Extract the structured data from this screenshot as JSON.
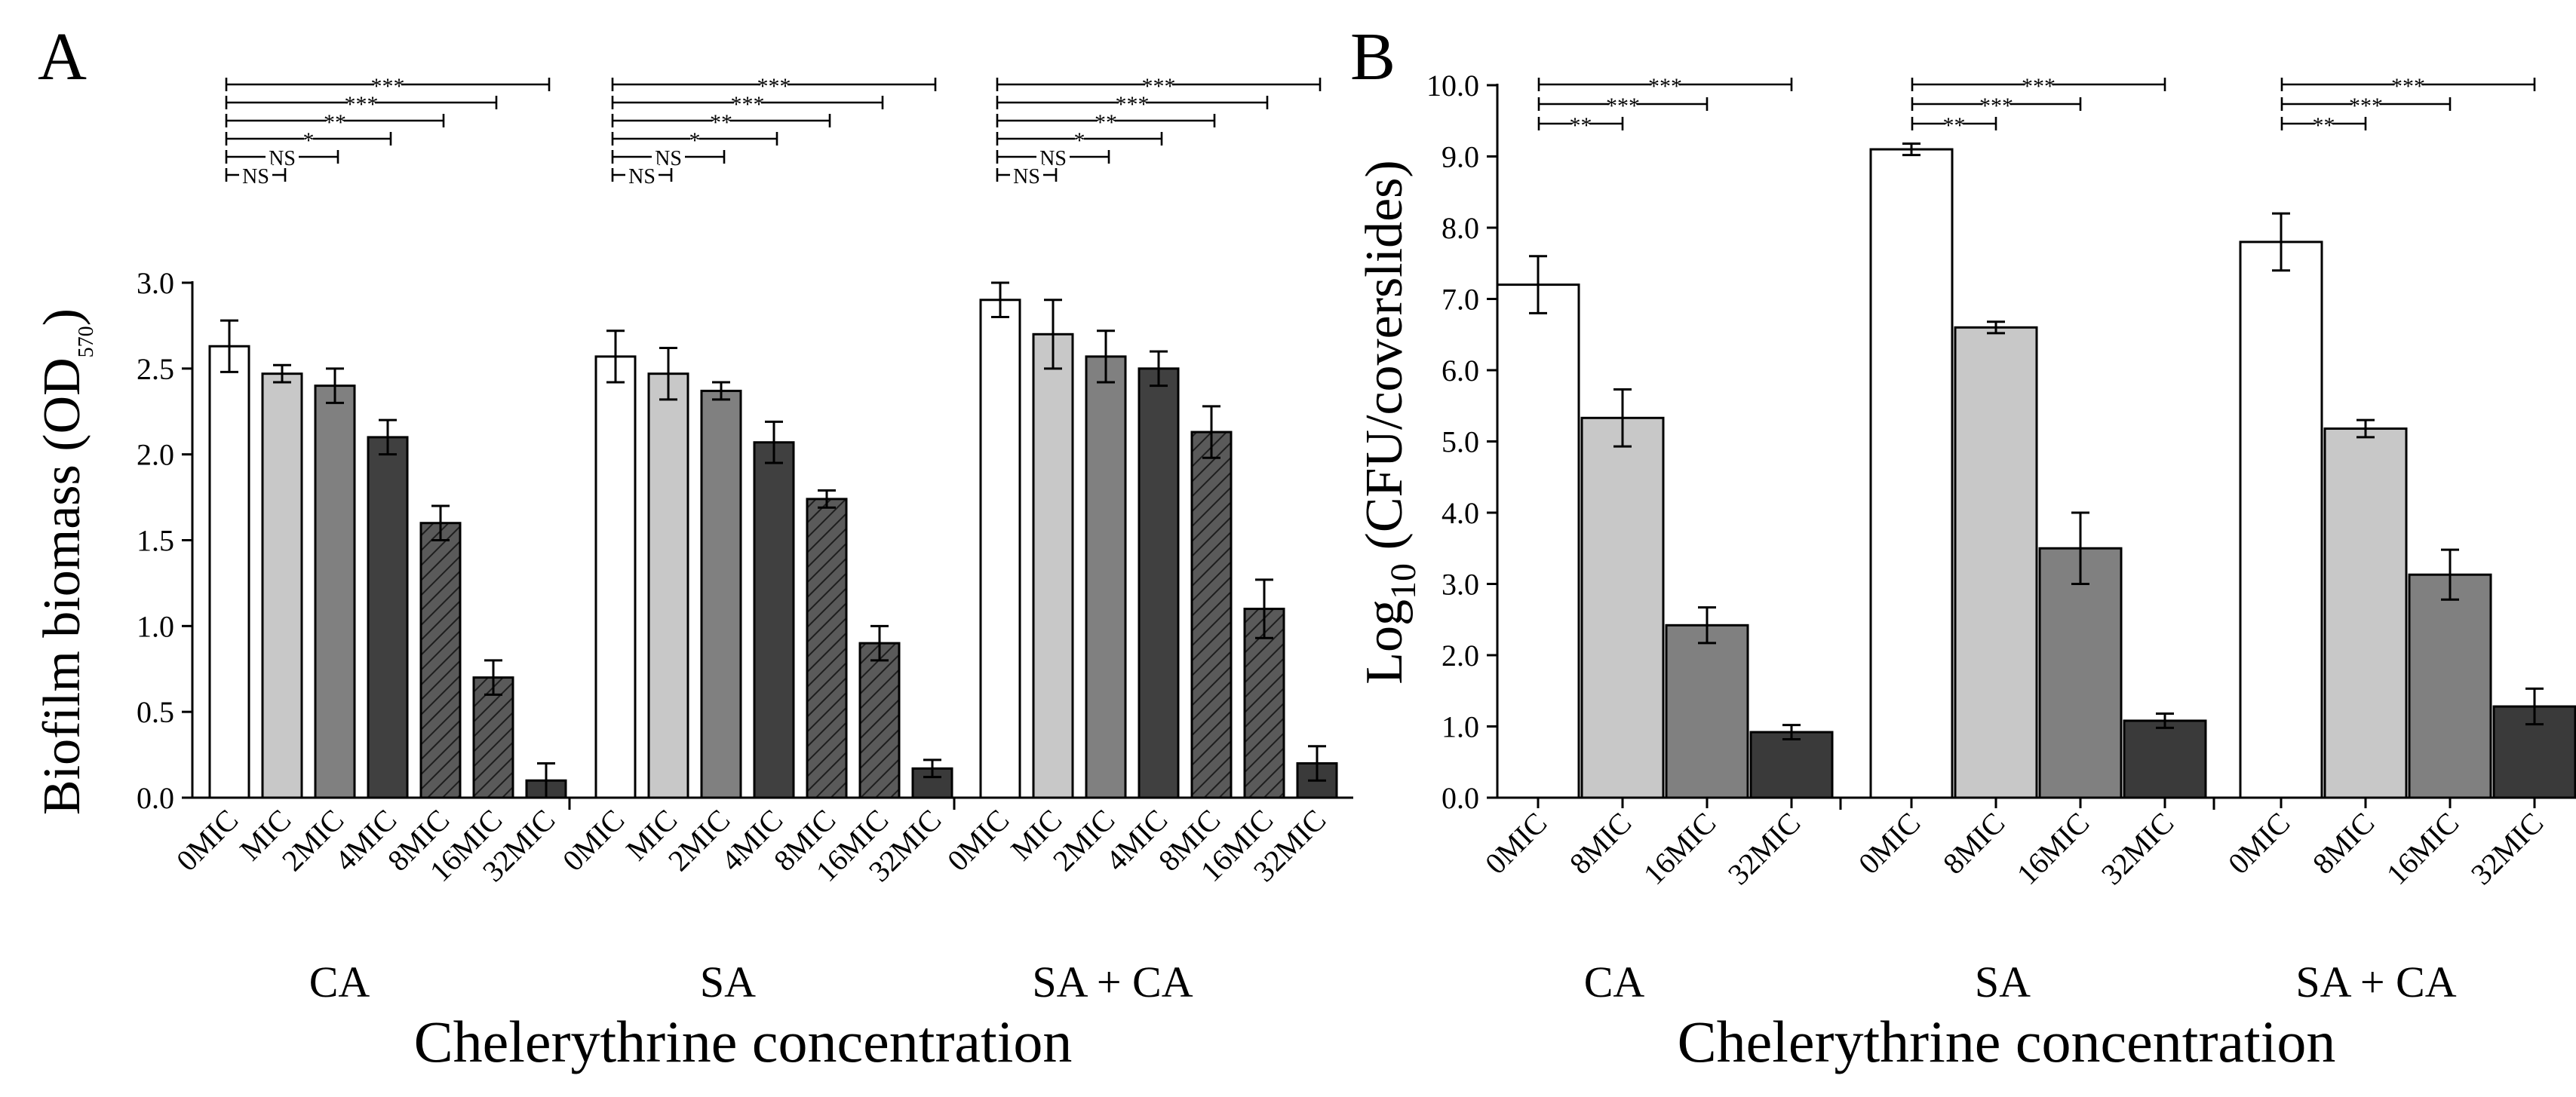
{
  "colors": {
    "white": "#ffffff",
    "light_gray": "#c8c8c8",
    "mid_gray": "#808080",
    "dark_gray": "#404040",
    "hatch_gray": "#5a5a5a",
    "darker_gray": "#3a3a3a"
  },
  "chart_data": [
    {
      "type": "bar",
      "panel_label": "A",
      "ylabel": "Biofilm biomass (OD570)",
      "ylabel_main": "Biofilm biomass (OD",
      "ylabel_sub": "570",
      "ylabel_end": ")",
      "xlabel": "Chelerythrine concentration",
      "ylim": [
        0,
        3.0
      ],
      "yticks": [
        "0.0",
        "0.5",
        "1.0",
        "1.5",
        "2.0",
        "2.5",
        "3.0"
      ],
      "ytick_values": [
        0,
        0.5,
        1.0,
        1.5,
        2.0,
        2.5,
        3.0
      ],
      "categories": [
        "0MIC",
        "MIC",
        "2MIC",
        "4MIC",
        "8MIC",
        "16MIC",
        "32MIC"
      ],
      "bar_styles": [
        "white",
        "light_gray",
        "mid_gray",
        "dark_gray",
        "hatch",
        "hatch",
        "darker_gray"
      ],
      "groups": [
        {
          "name": "CA",
          "values": [
            2.63,
            2.47,
            2.4,
            2.1,
            1.6,
            0.7,
            0.1
          ],
          "errors": [
            0.15,
            0.05,
            0.1,
            0.1,
            0.1,
            0.1,
            0.1
          ]
        },
        {
          "name": "SA",
          "values": [
            2.57,
            2.47,
            2.37,
            2.07,
            1.74,
            0.9,
            0.17
          ],
          "errors": [
            0.15,
            0.15,
            0.05,
            0.12,
            0.05,
            0.1,
            0.05
          ]
        },
        {
          "name": "SA + CA",
          "values": [
            2.9,
            2.7,
            2.57,
            2.5,
            2.13,
            1.1,
            0.2
          ],
          "errors": [
            0.1,
            0.2,
            0.15,
            0.1,
            0.15,
            0.17,
            0.1
          ]
        }
      ],
      "significance": [
        "***",
        "***",
        "**",
        "*",
        "NS",
        "NS"
      ],
      "significance_levels_per_group": [
        [
          "***",
          "***",
          "**",
          "*",
          "NS",
          "NS"
        ],
        [
          "***",
          "***",
          "**",
          "*",
          "NS",
          "NS"
        ],
        [
          "***",
          "***",
          "**",
          "*",
          "NS",
          "NS"
        ]
      ]
    },
    {
      "type": "bar",
      "panel_label": "B",
      "ylabel": "Log10 (CFU/coverslides)",
      "ylabel_main": "Log",
      "ylabel_sub": "10",
      "ylabel_end": " (CFU/coverslides)",
      "xlabel": "Chelerythrine concentration",
      "ylim": [
        0,
        10.0
      ],
      "yticks": [
        "0.0",
        "1.0",
        "2.0",
        "3.0",
        "4.0",
        "5.0",
        "6.0",
        "7.0",
        "8.0",
        "9.0",
        "10.0"
      ],
      "ytick_values": [
        0,
        1,
        2,
        3,
        4,
        5,
        6,
        7,
        8,
        9,
        10
      ],
      "categories": [
        "0MIC",
        "8MIC",
        "16MIC",
        "32MIC"
      ],
      "bar_styles": [
        "white",
        "light_gray",
        "mid_gray",
        "darker_gray"
      ],
      "groups": [
        {
          "name": "CA",
          "values": [
            7.2,
            5.33,
            2.42,
            0.92
          ],
          "errors": [
            0.4,
            0.4,
            0.25,
            0.1
          ]
        },
        {
          "name": "SA",
          "values": [
            9.1,
            6.6,
            3.5,
            1.08
          ],
          "errors": [
            0.08,
            0.08,
            0.5,
            0.1
          ]
        },
        {
          "name": "SA + CA",
          "values": [
            7.8,
            5.18,
            3.13,
            1.28
          ],
          "errors": [
            0.4,
            0.12,
            0.35,
            0.25
          ]
        }
      ],
      "significance_levels_per_group": [
        [
          "***",
          "***",
          "**"
        ],
        [
          "***",
          "***",
          "**"
        ],
        [
          "***",
          "***",
          "**"
        ]
      ]
    }
  ]
}
